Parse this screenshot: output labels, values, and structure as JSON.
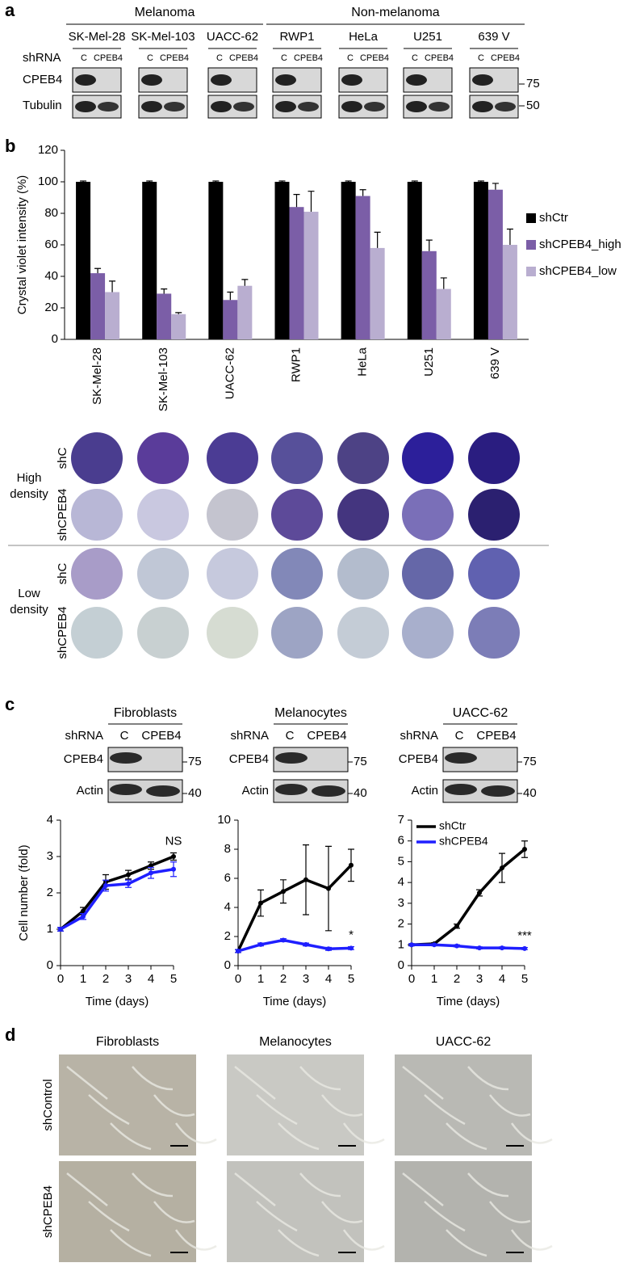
{
  "panel_labels": [
    "a",
    "b",
    "c",
    "d"
  ],
  "blot_a": {
    "groups": [
      {
        "name": "Melanoma",
        "color": "#c00000",
        "cell_lines": [
          "SK-Mel-28",
          "SK-Mel-103",
          "UACC-62"
        ]
      },
      {
        "name": "Non-melanoma",
        "color": "#000000",
        "cell_lines": [
          "RWP1",
          "HeLa",
          "U251",
          "639 V"
        ]
      }
    ],
    "row_label": "shRNA",
    "lanes": [
      "C",
      "CPEB4"
    ],
    "proteins": [
      "CPEB4",
      "Tubulin"
    ],
    "markers": [
      "75",
      "50"
    ]
  },
  "colonies": {
    "row_groups": [
      [
        "High",
        "density"
      ],
      [
        "Low",
        "density"
      ]
    ],
    "rows": [
      "shC",
      "shCPEB4"
    ]
  },
  "blot_c": {
    "columns": [
      {
        "title": "Fibroblasts",
        "color": "#000000"
      },
      {
        "title": "Melanocytes",
        "color": "#e05050"
      },
      {
        "title": "UACC-62",
        "color": "#c00000"
      }
    ],
    "row_label": "shRNA",
    "lanes": [
      "C",
      "CPEB4"
    ],
    "proteins": [
      "CPEB4",
      "Actin"
    ],
    "markers": [
      "75",
      "40"
    ]
  },
  "panel_d": {
    "columns": [
      "Fibroblasts",
      "Melanocytes",
      "UACC-62"
    ],
    "column_colors": [
      "#000000",
      "#e05050",
      "#c00000"
    ],
    "rows": [
      "shControl",
      "shCPEB4"
    ]
  },
  "chart_data": [
    {
      "type": "bar",
      "ylabel": "Crystal violet intensity (%)",
      "categories": [
        "SK-Mel-28",
        "SK-Mel-103",
        "UACC-62",
        "RWP1",
        "HeLa",
        "U251",
        "639 V"
      ],
      "category_colors": [
        "#c00000",
        "#c00000",
        "#c00000",
        "#000000",
        "#000000",
        "#000000",
        "#000000"
      ],
      "series": [
        {
          "name": "shCtr",
          "color": "#000000",
          "values": [
            100,
            100,
            100,
            100,
            100,
            100,
            100
          ],
          "errors": [
            0.5,
            0.5,
            0.5,
            0.5,
            0.5,
            0.5,
            0.5
          ]
        },
        {
          "name": "shCPEB4_high",
          "color": "#7b5ea7",
          "values": [
            42,
            29,
            25,
            84,
            91,
            56,
            95
          ],
          "errors": [
            3,
            3,
            5,
            8,
            4,
            7,
            4
          ]
        },
        {
          "name": "shCPEB4_low",
          "color": "#b9aed0",
          "values": [
            30,
            16,
            34,
            81,
            58,
            32,
            60
          ],
          "errors": [
            7,
            1,
            4,
            13,
            10,
            7,
            10
          ]
        }
      ],
      "ylim": [
        0,
        120
      ],
      "yticks": [
        0,
        20,
        40,
        60,
        80,
        100,
        120
      ],
      "legend": "right"
    },
    {
      "type": "line",
      "ylabel": "Cell number (fold)",
      "xlabel": "Time (days)",
      "x": [
        0,
        1,
        2,
        3,
        4,
        5
      ],
      "xlim": [
        0,
        5
      ],
      "xticks": [
        0,
        1,
        2,
        3,
        4,
        5
      ],
      "ylim": [
        0,
        4
      ],
      "yticks": [
        0,
        1,
        2,
        3,
        4
      ],
      "annotation": "NS",
      "series": [
        {
          "color": "#000000",
          "values": [
            1,
            1.5,
            2.3,
            2.5,
            2.75,
            3.0
          ],
          "errors": [
            0.05,
            0.1,
            0.2,
            0.12,
            0.1,
            0.1
          ]
        },
        {
          "color": "#1f1fff",
          "values": [
            1,
            1.35,
            2.2,
            2.25,
            2.55,
            2.65
          ],
          "errors": [
            0.05,
            0.08,
            0.15,
            0.1,
            0.15,
            0.2
          ]
        }
      ]
    },
    {
      "type": "line",
      "xlabel": "Time (days)",
      "x": [
        0,
        1,
        2,
        3,
        4,
        5
      ],
      "xlim": [
        0,
        5
      ],
      "xticks": [
        0,
        1,
        2,
        3,
        4,
        5
      ],
      "ylim": [
        0,
        10
      ],
      "yticks": [
        0,
        2,
        4,
        6,
        8,
        10
      ],
      "annotation": "*",
      "series": [
        {
          "color": "#000000",
          "values": [
            1,
            4.3,
            5.1,
            5.9,
            5.3,
            6.9
          ],
          "errors": [
            0.1,
            0.9,
            0.8,
            2.4,
            2.9,
            1.1
          ]
        },
        {
          "color": "#1f1fff",
          "values": [
            1,
            1.45,
            1.75,
            1.45,
            1.15,
            1.2
          ],
          "errors": [
            0.1,
            0.1,
            0.1,
            0.1,
            0.1,
            0.1
          ]
        }
      ]
    },
    {
      "type": "line",
      "xlabel": "Time (days)",
      "x": [
        0,
        1,
        2,
        3,
        4,
        5
      ],
      "xlim": [
        0,
        5
      ],
      "xticks": [
        0,
        1,
        2,
        3,
        4,
        5
      ],
      "ylim": [
        0,
        7
      ],
      "yticks": [
        0,
        1,
        2,
        3,
        4,
        5,
        6,
        7
      ],
      "annotation": "***",
      "legend": "upper left",
      "series": [
        {
          "name": "shCtr",
          "color": "#000000",
          "values": [
            1,
            1.05,
            1.9,
            3.5,
            4.7,
            5.6
          ],
          "errors": [
            0.05,
            0.05,
            0.1,
            0.15,
            0.7,
            0.4
          ]
        },
        {
          "name": "shCPEB4",
          "color": "#1f1fff",
          "values": [
            1,
            1,
            0.95,
            0.85,
            0.85,
            0.82
          ],
          "errors": [
            0.05,
            0.05,
            0.05,
            0.05,
            0.05,
            0.05
          ]
        }
      ]
    }
  ]
}
